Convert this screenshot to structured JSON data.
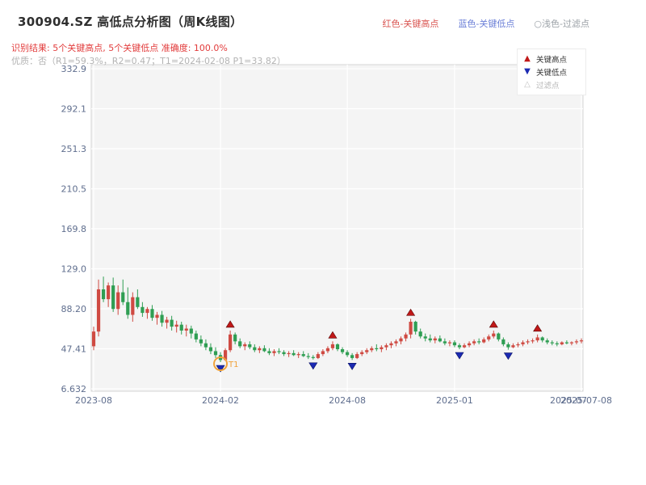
{
  "header": {
    "title": "300904.SZ 高低点分析图（周K线图）",
    "legend_inline": [
      {
        "label": "红色-关键高点",
        "color": "#d9534f"
      },
      {
        "label": "蓝色-关键低点",
        "color": "#6b7fd7"
      },
      {
        "label": "○浅色-过滤点",
        "color": "#9aa0a6"
      }
    ],
    "result_line": "识别结果: 5个关键高点, 5个关键低点  准确度: 100.0%",
    "quality_line": "优质：否（R1=59.3%，R2=0.47；T1=2024-02-08 P1=33.82）"
  },
  "chart_data": {
    "type": "candlestick",
    "title": "300904.SZ 高低点分析图（周K线图）",
    "background": "#f4f4f4",
    "up_color": "#cf4a42",
    "down_color": "#2f9e53",
    "ylim": [
      6.632,
      332.9
    ],
    "y_ticks": [
      {
        "value": 332.9,
        "label": "332.9"
      },
      {
        "value": 292.1,
        "label": "292.1"
      },
      {
        "value": 251.3,
        "label": "251.3"
      },
      {
        "value": 210.5,
        "label": "210.5"
      },
      {
        "value": 169.8,
        "label": "169.8"
      },
      {
        "value": 129.0,
        "label": "129.0"
      },
      {
        "value": 88.2,
        "label": "88.20"
      },
      {
        "value": 47.41,
        "label": "47.41"
      },
      {
        "value": 6.632,
        "label": "6.632"
      }
    ],
    "x_ticks": [
      {
        "index": 0,
        "label": "2023-08"
      },
      {
        "index": 26,
        "label": "2024-02"
      },
      {
        "index": 52,
        "label": "2024-08"
      },
      {
        "index": 74,
        "label": "2025-01"
      },
      {
        "index": 100,
        "label": "2025-07",
        "dx": -16
      },
      {
        "index": 100,
        "label": "2025-07-08",
        "dx": 6,
        "line": false
      }
    ],
    "candles": [
      [
        50,
        70,
        46,
        65
      ],
      [
        65,
        118,
        60,
        108
      ],
      [
        108,
        121,
        95,
        98
      ],
      [
        98,
        115,
        90,
        112
      ],
      [
        112,
        120,
        85,
        88
      ],
      [
        88,
        112,
        82,
        105
      ],
      [
        105,
        118,
        92,
        95
      ],
      [
        95,
        110,
        78,
        82
      ],
      [
        82,
        105,
        75,
        100
      ],
      [
        100,
        108,
        88,
        90
      ],
      [
        90,
        95,
        80,
        84
      ],
      [
        84,
        90,
        78,
        88
      ],
      [
        88,
        92,
        76,
        79
      ],
      [
        79,
        85,
        72,
        82
      ],
      [
        82,
        86,
        70,
        74
      ],
      [
        74,
        80,
        68,
        77
      ],
      [
        77,
        81,
        66,
        70
      ],
      [
        70,
        76,
        64,
        72
      ],
      [
        72,
        75,
        62,
        66
      ],
      [
        66,
        72,
        60,
        68
      ],
      [
        68,
        71,
        58,
        63
      ],
      [
        63,
        66,
        54,
        57
      ],
      [
        57,
        61,
        50,
        53
      ],
      [
        53,
        57,
        46,
        49
      ],
      [
        49,
        53,
        42,
        45
      ],
      [
        45,
        49,
        38,
        41
      ],
      [
        41,
        44,
        33.82,
        36
      ],
      [
        36,
        48,
        35,
        46
      ],
      [
        46,
        66,
        44,
        62
      ],
      [
        62,
        64,
        52,
        55
      ],
      [
        55,
        58,
        48,
        50
      ],
      [
        50,
        54,
        46,
        52
      ],
      [
        52,
        55,
        47,
        49
      ],
      [
        49,
        52,
        44,
        46
      ],
      [
        46,
        50,
        43,
        48
      ],
      [
        48,
        51,
        44,
        45
      ],
      [
        45,
        48,
        41,
        43
      ],
      [
        43,
        47,
        40,
        45
      ],
      [
        45,
        48,
        42,
        44
      ],
      [
        44,
        46,
        40,
        42
      ],
      [
        42,
        45,
        39,
        43
      ],
      [
        43,
        46,
        40,
        41
      ],
      [
        41,
        44,
        38,
        42
      ],
      [
        42,
        45,
        39,
        40
      ],
      [
        40,
        43,
        37,
        39
      ],
      [
        39,
        41,
        36.5,
        38
      ],
      [
        38,
        44,
        37,
        42
      ],
      [
        42,
        47,
        40,
        45
      ],
      [
        45,
        50,
        43,
        48
      ],
      [
        48,
        55,
        46,
        52
      ],
      [
        52,
        53,
        45,
        47
      ],
      [
        47,
        49,
        42,
        44
      ],
      [
        44,
        46,
        39,
        41
      ],
      [
        41,
        43,
        36,
        38
      ],
      [
        38,
        44,
        37,
        42
      ],
      [
        42,
        46,
        40,
        44
      ],
      [
        44,
        48,
        42,
        46
      ],
      [
        46,
        50,
        44,
        48
      ],
      [
        48,
        52,
        45,
        47
      ],
      [
        47,
        51,
        44,
        49
      ],
      [
        49,
        53,
        46,
        51
      ],
      [
        51,
        55,
        48,
        53
      ],
      [
        53,
        57,
        50,
        55
      ],
      [
        55,
        60,
        52,
        58
      ],
      [
        58,
        64,
        55,
        62
      ],
      [
        62,
        78,
        58,
        75
      ],
      [
        75,
        76,
        62,
        65
      ],
      [
        65,
        68,
        58,
        60
      ],
      [
        60,
        63,
        55,
        58
      ],
      [
        58,
        62,
        54,
        56
      ],
      [
        56,
        60,
        53,
        58
      ],
      [
        58,
        61,
        54,
        55
      ],
      [
        55,
        58,
        51,
        53
      ],
      [
        53,
        56,
        50,
        54
      ],
      [
        54,
        56,
        49,
        51
      ],
      [
        51,
        53,
        47,
        49
      ],
      [
        49,
        53,
        48,
        51
      ],
      [
        51,
        55,
        49,
        53
      ],
      [
        53,
        57,
        51,
        55
      ],
      [
        55,
        58,
        52,
        54
      ],
      [
        54,
        59,
        53,
        57
      ],
      [
        57,
        62,
        55,
        60
      ],
      [
        60,
        66,
        58,
        63
      ],
      [
        63,
        64,
        55,
        57
      ],
      [
        57,
        59,
        50,
        52
      ],
      [
        52,
        54,
        46.5,
        49
      ],
      [
        49,
        53,
        48,
        51
      ],
      [
        51,
        54,
        49,
        52
      ],
      [
        52,
        56,
        50,
        54
      ],
      [
        54,
        57,
        52,
        55
      ],
      [
        55,
        58,
        53,
        56
      ],
      [
        56,
        62,
        54,
        59
      ],
      [
        59,
        60,
        54,
        56
      ],
      [
        56,
        58,
        52,
        54
      ],
      [
        54,
        56,
        51,
        53
      ],
      [
        53,
        55,
        50,
        52
      ],
      [
        52,
        55,
        51,
        54
      ],
      [
        54,
        56,
        52,
        53
      ],
      [
        53,
        55,
        51,
        54
      ],
      [
        54,
        57,
        52,
        55
      ],
      [
        55,
        58,
        53,
        56
      ]
    ],
    "key_high_indices": [
      28,
      49,
      65,
      82,
      91
    ],
    "key_low_indices": [
      26,
      45,
      53,
      75,
      85
    ],
    "filtered_point": {
      "index": 26,
      "label": "T1"
    },
    "marker_colors": {
      "high": "#c01818",
      "low": "#1b2ab2",
      "filtered_ring": "#f0a23a"
    },
    "legend_box": {
      "items": [
        {
          "symbol": "▲",
          "color": "#c01818",
          "label": "关键高点",
          "text_color": "#333333"
        },
        {
          "symbol": "▼",
          "color": "#1b2ab2",
          "label": "关键低点",
          "text_color": "#333333"
        },
        {
          "symbol": "△",
          "color": "#c2c2c2",
          "label": "过滤点",
          "text_color": "#b5b5b5"
        }
      ]
    }
  }
}
